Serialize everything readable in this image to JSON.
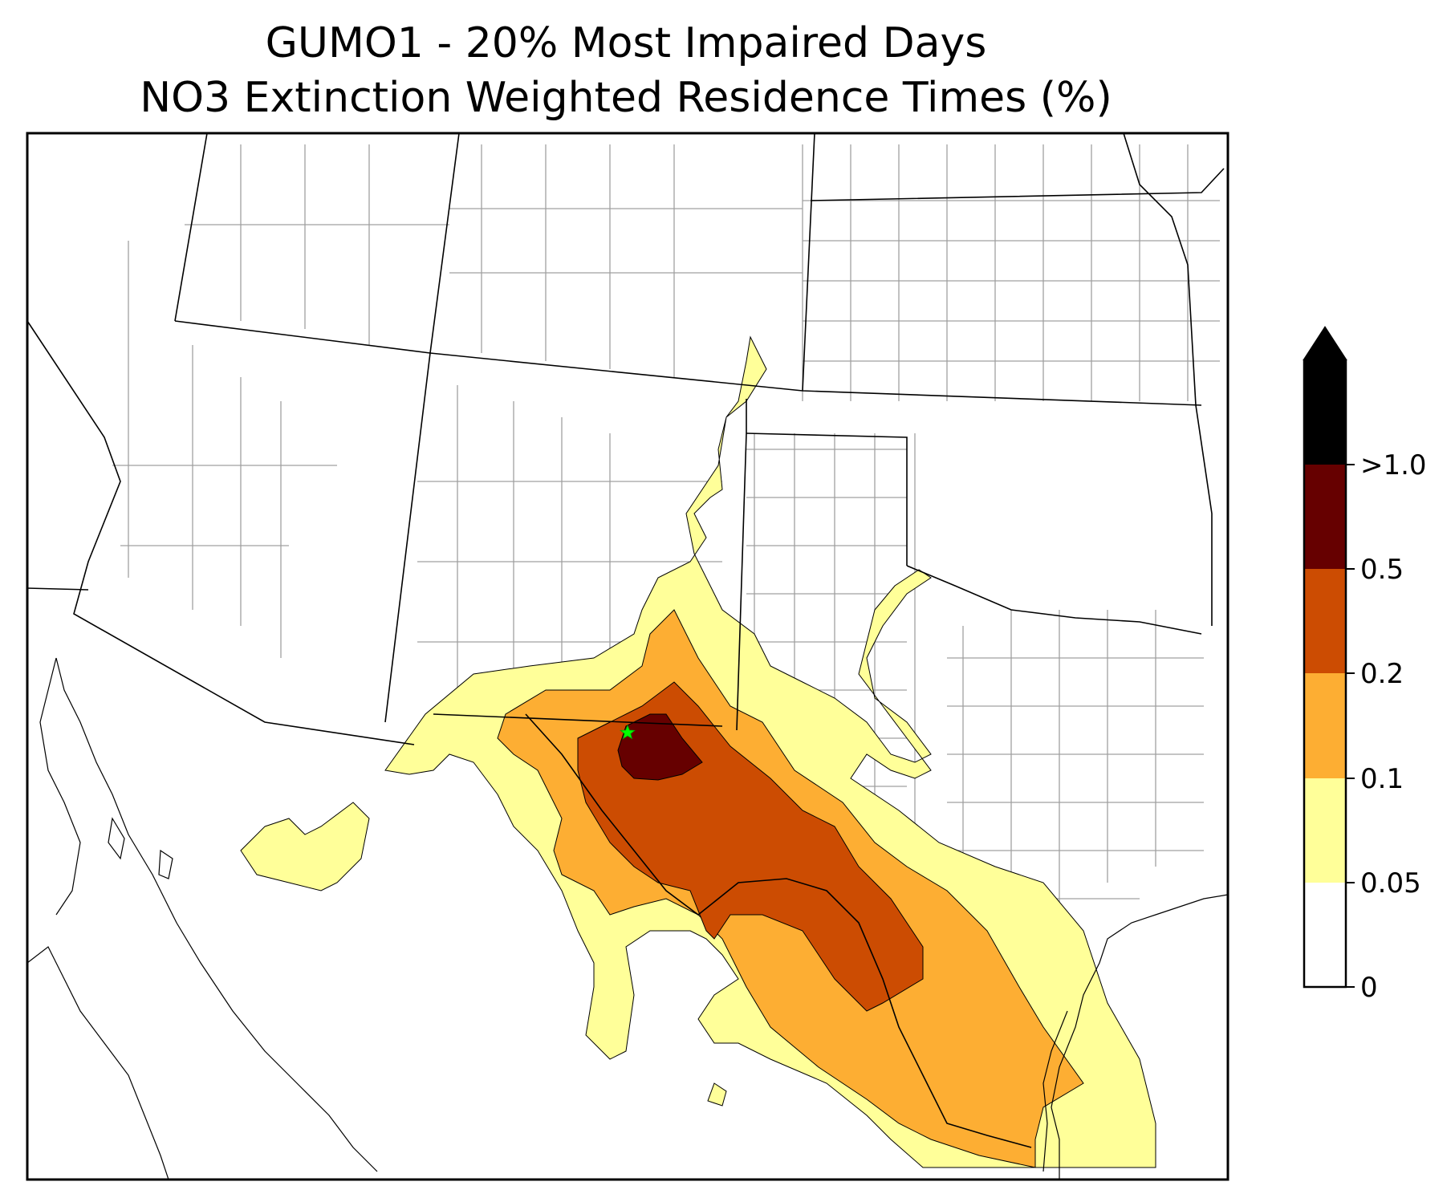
{
  "title": {
    "line1": "GUMO1 - 20% Most Impaired Days",
    "line2": "NO3 Extinction Weighted Residence Times (%)"
  },
  "site": {
    "marker": "green-star",
    "color": "#00ff00"
  },
  "colorbar": {
    "extend": "max",
    "levels": [
      {
        "label": "0",
        "color": "#ffffff"
      },
      {
        "label": "0.05",
        "color": "#ffff99"
      },
      {
        "label": "0.1",
        "color": "#fdae33"
      },
      {
        "label": "0.2",
        "color": "#cc4c02"
      },
      {
        "label": "0.5",
        "color": "#660000"
      },
      {
        "label": ">1.0",
        "color": "#000000"
      }
    ]
  },
  "colors": {
    "state_border": "#000000",
    "county_border": "#a0a0a0",
    "coastline": "#000000"
  }
}
